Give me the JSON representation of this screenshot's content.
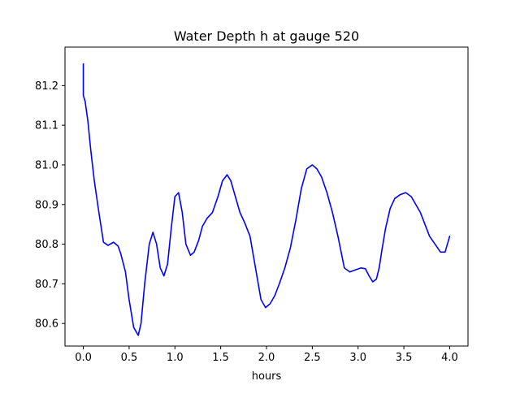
{
  "chart_data": {
    "type": "line",
    "title": "Water Depth h at gauge 520",
    "xlabel": "hours",
    "ylabel": "",
    "xlim": [
      -0.2,
      4.2
    ],
    "ylim": [
      80.543,
      81.297
    ],
    "xticks": [
      0.0,
      0.5,
      1.0,
      1.5,
      2.0,
      2.5,
      3.0,
      3.5,
      4.0
    ],
    "xtick_labels": [
      "0.0",
      "0.5",
      "1.0",
      "1.5",
      "2.0",
      "2.5",
      "3.0",
      "3.5",
      "4.0"
    ],
    "yticks": [
      80.6,
      80.7,
      80.8,
      80.9,
      81.0,
      81.1,
      81.2
    ],
    "ytick_labels": [
      "80.6",
      "80.7",
      "80.8",
      "80.9",
      "81.0",
      "81.1",
      "81.2"
    ],
    "grid": false,
    "series": [
      {
        "color": "#0000ff",
        "x": [
          0.0,
          0.0,
          0.02,
          0.05,
          0.08,
          0.12,
          0.17,
          0.22,
          0.27,
          0.33,
          0.38,
          0.41,
          0.46,
          0.5,
          0.55,
          0.6,
          0.63,
          0.67,
          0.72,
          0.76,
          0.8,
          0.84,
          0.88,
          0.92,
          0.96,
          1.0,
          1.04,
          1.08,
          1.12,
          1.17,
          1.21,
          1.26,
          1.3,
          1.35,
          1.41,
          1.47,
          1.52,
          1.57,
          1.61,
          1.66,
          1.71,
          1.76,
          1.82,
          1.88,
          1.94,
          1.99,
          2.04,
          2.09,
          2.14,
          2.2,
          2.26,
          2.32,
          2.38,
          2.44,
          2.5,
          2.55,
          2.6,
          2.66,
          2.72,
          2.78,
          2.85,
          2.91,
          2.97,
          3.03,
          3.08,
          3.12,
          3.16,
          3.2,
          3.23,
          3.26,
          3.3,
          3.35,
          3.4,
          3.46,
          3.52,
          3.58,
          3.63,
          3.68,
          3.73,
          3.78,
          3.84,
          3.9,
          3.95,
          4.0
        ],
        "y": [
          81.255,
          81.175,
          81.16,
          81.11,
          81.04,
          80.96,
          80.88,
          80.805,
          80.797,
          80.805,
          80.795,
          80.775,
          80.73,
          80.66,
          80.59,
          80.57,
          80.6,
          80.7,
          80.8,
          80.83,
          80.8,
          80.74,
          80.72,
          80.75,
          80.84,
          80.92,
          80.93,
          80.88,
          80.8,
          80.772,
          80.78,
          80.81,
          80.845,
          80.865,
          80.88,
          80.92,
          80.96,
          80.975,
          80.96,
          80.92,
          80.88,
          80.855,
          80.82,
          80.74,
          80.66,
          80.64,
          80.65,
          80.67,
          80.7,
          80.74,
          80.79,
          80.86,
          80.94,
          80.99,
          81.0,
          80.99,
          80.97,
          80.93,
          80.88,
          80.82,
          80.74,
          80.73,
          80.735,
          80.74,
          80.738,
          80.72,
          80.705,
          80.712,
          80.74,
          80.785,
          80.84,
          80.89,
          80.915,
          80.925,
          80.93,
          80.92,
          80.9,
          80.88,
          80.85,
          80.82,
          80.8,
          80.78,
          80.78,
          80.82
        ]
      }
    ]
  }
}
